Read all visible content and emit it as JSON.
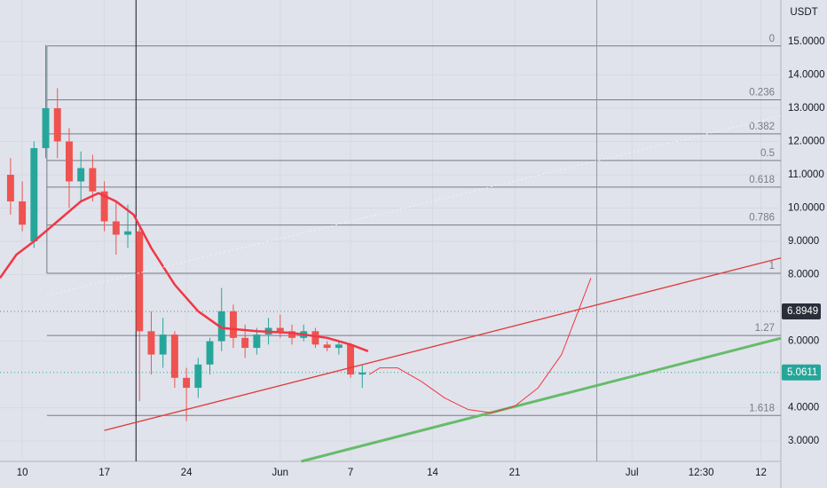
{
  "chart_data": {
    "type": "candlestick",
    "currency": "USDT",
    "xlim": [
      8.1,
      74.7
    ],
    "ylim": [
      2.39,
      16.25
    ],
    "xticks": [
      {
        "value": 10,
        "label": "10"
      },
      {
        "value": 17,
        "label": "17"
      },
      {
        "value": 24,
        "label": "24"
      },
      {
        "value": 32,
        "label": "Jun"
      },
      {
        "value": 38,
        "label": "7"
      },
      {
        "value": 45,
        "label": "14"
      },
      {
        "value": 52,
        "label": "21"
      },
      {
        "value": 62,
        "label": "Jul"
      },
      {
        "value": 67.9,
        "label": "12:30"
      },
      {
        "value": 73,
        "label": "12"
      }
    ],
    "yticks": [
      {
        "value": 15,
        "label": "15.0000"
      },
      {
        "value": 14,
        "label": "14.0000"
      },
      {
        "value": 13,
        "label": "13.0000"
      },
      {
        "value": 12,
        "label": "12.0000"
      },
      {
        "value": 11,
        "label": "11.0000"
      },
      {
        "value": 10,
        "label": "10.0000"
      },
      {
        "value": 9,
        "label": "9.0000"
      },
      {
        "value": 8,
        "label": "8.0000"
      },
      {
        "value": 6,
        "label": "6.0000"
      },
      {
        "value": 4,
        "label": "4.0000"
      },
      {
        "value": 3,
        "label": "3.0000"
      }
    ],
    "grid": true,
    "up_color": "#26a69a",
    "down_color": "#ef5350",
    "candles": [
      {
        "x": 9,
        "open": 11.0,
        "high": 11.5,
        "low": 9.8,
        "close": 10.2
      },
      {
        "x": 10,
        "open": 10.2,
        "high": 10.8,
        "low": 9.3,
        "close": 9.5
      },
      {
        "x": 11,
        "open": 9.0,
        "high": 12.0,
        "low": 8.8,
        "close": 11.8
      },
      {
        "x": 12,
        "open": 11.8,
        "high": 14.9,
        "low": 11.5,
        "close": 13.0
      },
      {
        "x": 13,
        "open": 13.0,
        "high": 13.6,
        "low": 11.5,
        "close": 12.0
      },
      {
        "x": 14,
        "open": 12.0,
        "high": 12.4,
        "low": 10.0,
        "close": 10.8
      },
      {
        "x": 15,
        "open": 10.8,
        "high": 11.7,
        "low": 10.2,
        "close": 11.2
      },
      {
        "x": 16,
        "open": 11.2,
        "high": 11.6,
        "low": 10.2,
        "close": 10.5
      },
      {
        "x": 17,
        "open": 10.5,
        "high": 10.8,
        "low": 9.3,
        "close": 9.6
      },
      {
        "x": 18,
        "open": 9.6,
        "high": 10.2,
        "low": 8.6,
        "close": 9.2
      },
      {
        "x": 19,
        "open": 9.2,
        "high": 10.1,
        "low": 8.8,
        "close": 9.3
      },
      {
        "x": 20,
        "open": 9.3,
        "high": 9.4,
        "low": 4.2,
        "close": 6.3
      },
      {
        "x": 21,
        "open": 6.3,
        "high": 6.9,
        "low": 5.0,
        "close": 5.6
      },
      {
        "x": 22,
        "open": 5.6,
        "high": 6.7,
        "low": 5.2,
        "close": 6.2
      },
      {
        "x": 23,
        "open": 6.2,
        "high": 6.3,
        "low": 4.6,
        "close": 4.9
      },
      {
        "x": 24,
        "open": 4.9,
        "high": 5.2,
        "low": 3.6,
        "close": 4.6
      },
      {
        "x": 25,
        "open": 4.6,
        "high": 5.5,
        "low": 4.3,
        "close": 5.3
      },
      {
        "x": 26,
        "open": 5.3,
        "high": 6.1,
        "low": 5.0,
        "close": 6.0
      },
      {
        "x": 27,
        "open": 6.0,
        "high": 7.6,
        "low": 5.7,
        "close": 6.9
      },
      {
        "x": 28,
        "open": 6.9,
        "high": 7.1,
        "low": 5.8,
        "close": 6.1
      },
      {
        "x": 29,
        "open": 6.1,
        "high": 6.5,
        "low": 5.5,
        "close": 5.8
      },
      {
        "x": 30,
        "open": 5.8,
        "high": 6.4,
        "low": 5.6,
        "close": 6.2
      },
      {
        "x": 31,
        "open": 6.2,
        "high": 6.7,
        "low": 5.9,
        "close": 6.4
      },
      {
        "x": 32,
        "open": 6.4,
        "high": 6.8,
        "low": 6.1,
        "close": 6.3
      },
      {
        "x": 33,
        "open": 6.3,
        "high": 6.5,
        "low": 5.9,
        "close": 6.1
      },
      {
        "x": 34,
        "open": 6.1,
        "high": 6.5,
        "low": 6.0,
        "close": 6.3
      },
      {
        "x": 35,
        "open": 6.3,
        "high": 6.4,
        "low": 5.8,
        "close": 5.9
      },
      {
        "x": 36,
        "open": 5.9,
        "high": 6.0,
        "low": 5.7,
        "close": 5.8
      },
      {
        "x": 37,
        "open": 5.8,
        "high": 6.0,
        "low": 5.6,
        "close": 5.9
      },
      {
        "x": 38,
        "open": 5.9,
        "high": 5.95,
        "low": 4.9,
        "close": 5.0
      },
      {
        "x": 39,
        "open": 5.0,
        "high": 5.3,
        "low": 4.6,
        "close": 5.06
      }
    ],
    "fib_start": 12.1,
    "fib_color": "#787b86",
    "fib_levels": [
      {
        "label": "0",
        "value": 14.87
      },
      {
        "label": "0.236",
        "value": 13.25
      },
      {
        "label": "0.382",
        "value": 12.23
      },
      {
        "label": "0.5",
        "value": 11.43
      },
      {
        "label": "0.618",
        "value": 10.63
      },
      {
        "label": "0.786",
        "value": 9.49
      },
      {
        "label": "1",
        "value": 8.04
      },
      {
        "label": "1.27",
        "value": 6.17
      },
      {
        "label": "1.618",
        "value": 3.77
      }
    ],
    "lines": [
      {
        "color": "#f23645",
        "width": 2.5,
        "x": [
          8.1,
          9.5,
          11,
          13,
          15,
          16.5,
          18,
          19.5,
          21,
          23,
          25,
          27,
          30,
          33,
          36,
          38,
          39.5
        ],
        "y": [
          7.9,
          8.6,
          9.0,
          9.6,
          10.2,
          10.45,
          10.2,
          9.8,
          8.8,
          7.7,
          6.9,
          6.4,
          6.3,
          6.25,
          6.1,
          5.9,
          5.7
        ]
      },
      {
        "color": "#e03a3a",
        "width": 1.3,
        "x": [
          17,
          74.7
        ],
        "y": [
          3.32,
          8.5
        ]
      },
      {
        "color": "#66bb6a",
        "width": 3,
        "x": [
          33.8,
          74.7
        ],
        "y": [
          2.39,
          6.09
        ]
      },
      {
        "color": "#f0f3fa",
        "width": 1,
        "dash": "2 3",
        "x": [
          12.1,
          74.7
        ],
        "y": [
          7.37,
          12.77
        ]
      },
      {
        "color": "#f23645",
        "width": 1,
        "x": [
          39.6,
          40.5,
          42,
          44,
          46,
          48,
          50,
          52,
          54,
          56,
          58.5
        ],
        "y": [
          5.0,
          5.2,
          5.2,
          4.8,
          4.3,
          3.95,
          3.85,
          4.05,
          4.6,
          5.6,
          7.9
        ]
      }
    ],
    "vlines": [
      {
        "x": 19.7,
        "color": "#131722"
      },
      {
        "x": 59,
        "color": "#9598a1"
      }
    ],
    "price_tags": [
      {
        "value": 6.8949,
        "color": "#2a2e39",
        "line": "#787b86"
      },
      {
        "value": 5.0611,
        "color": "#26a69a",
        "line": "#26a69a"
      }
    ]
  }
}
